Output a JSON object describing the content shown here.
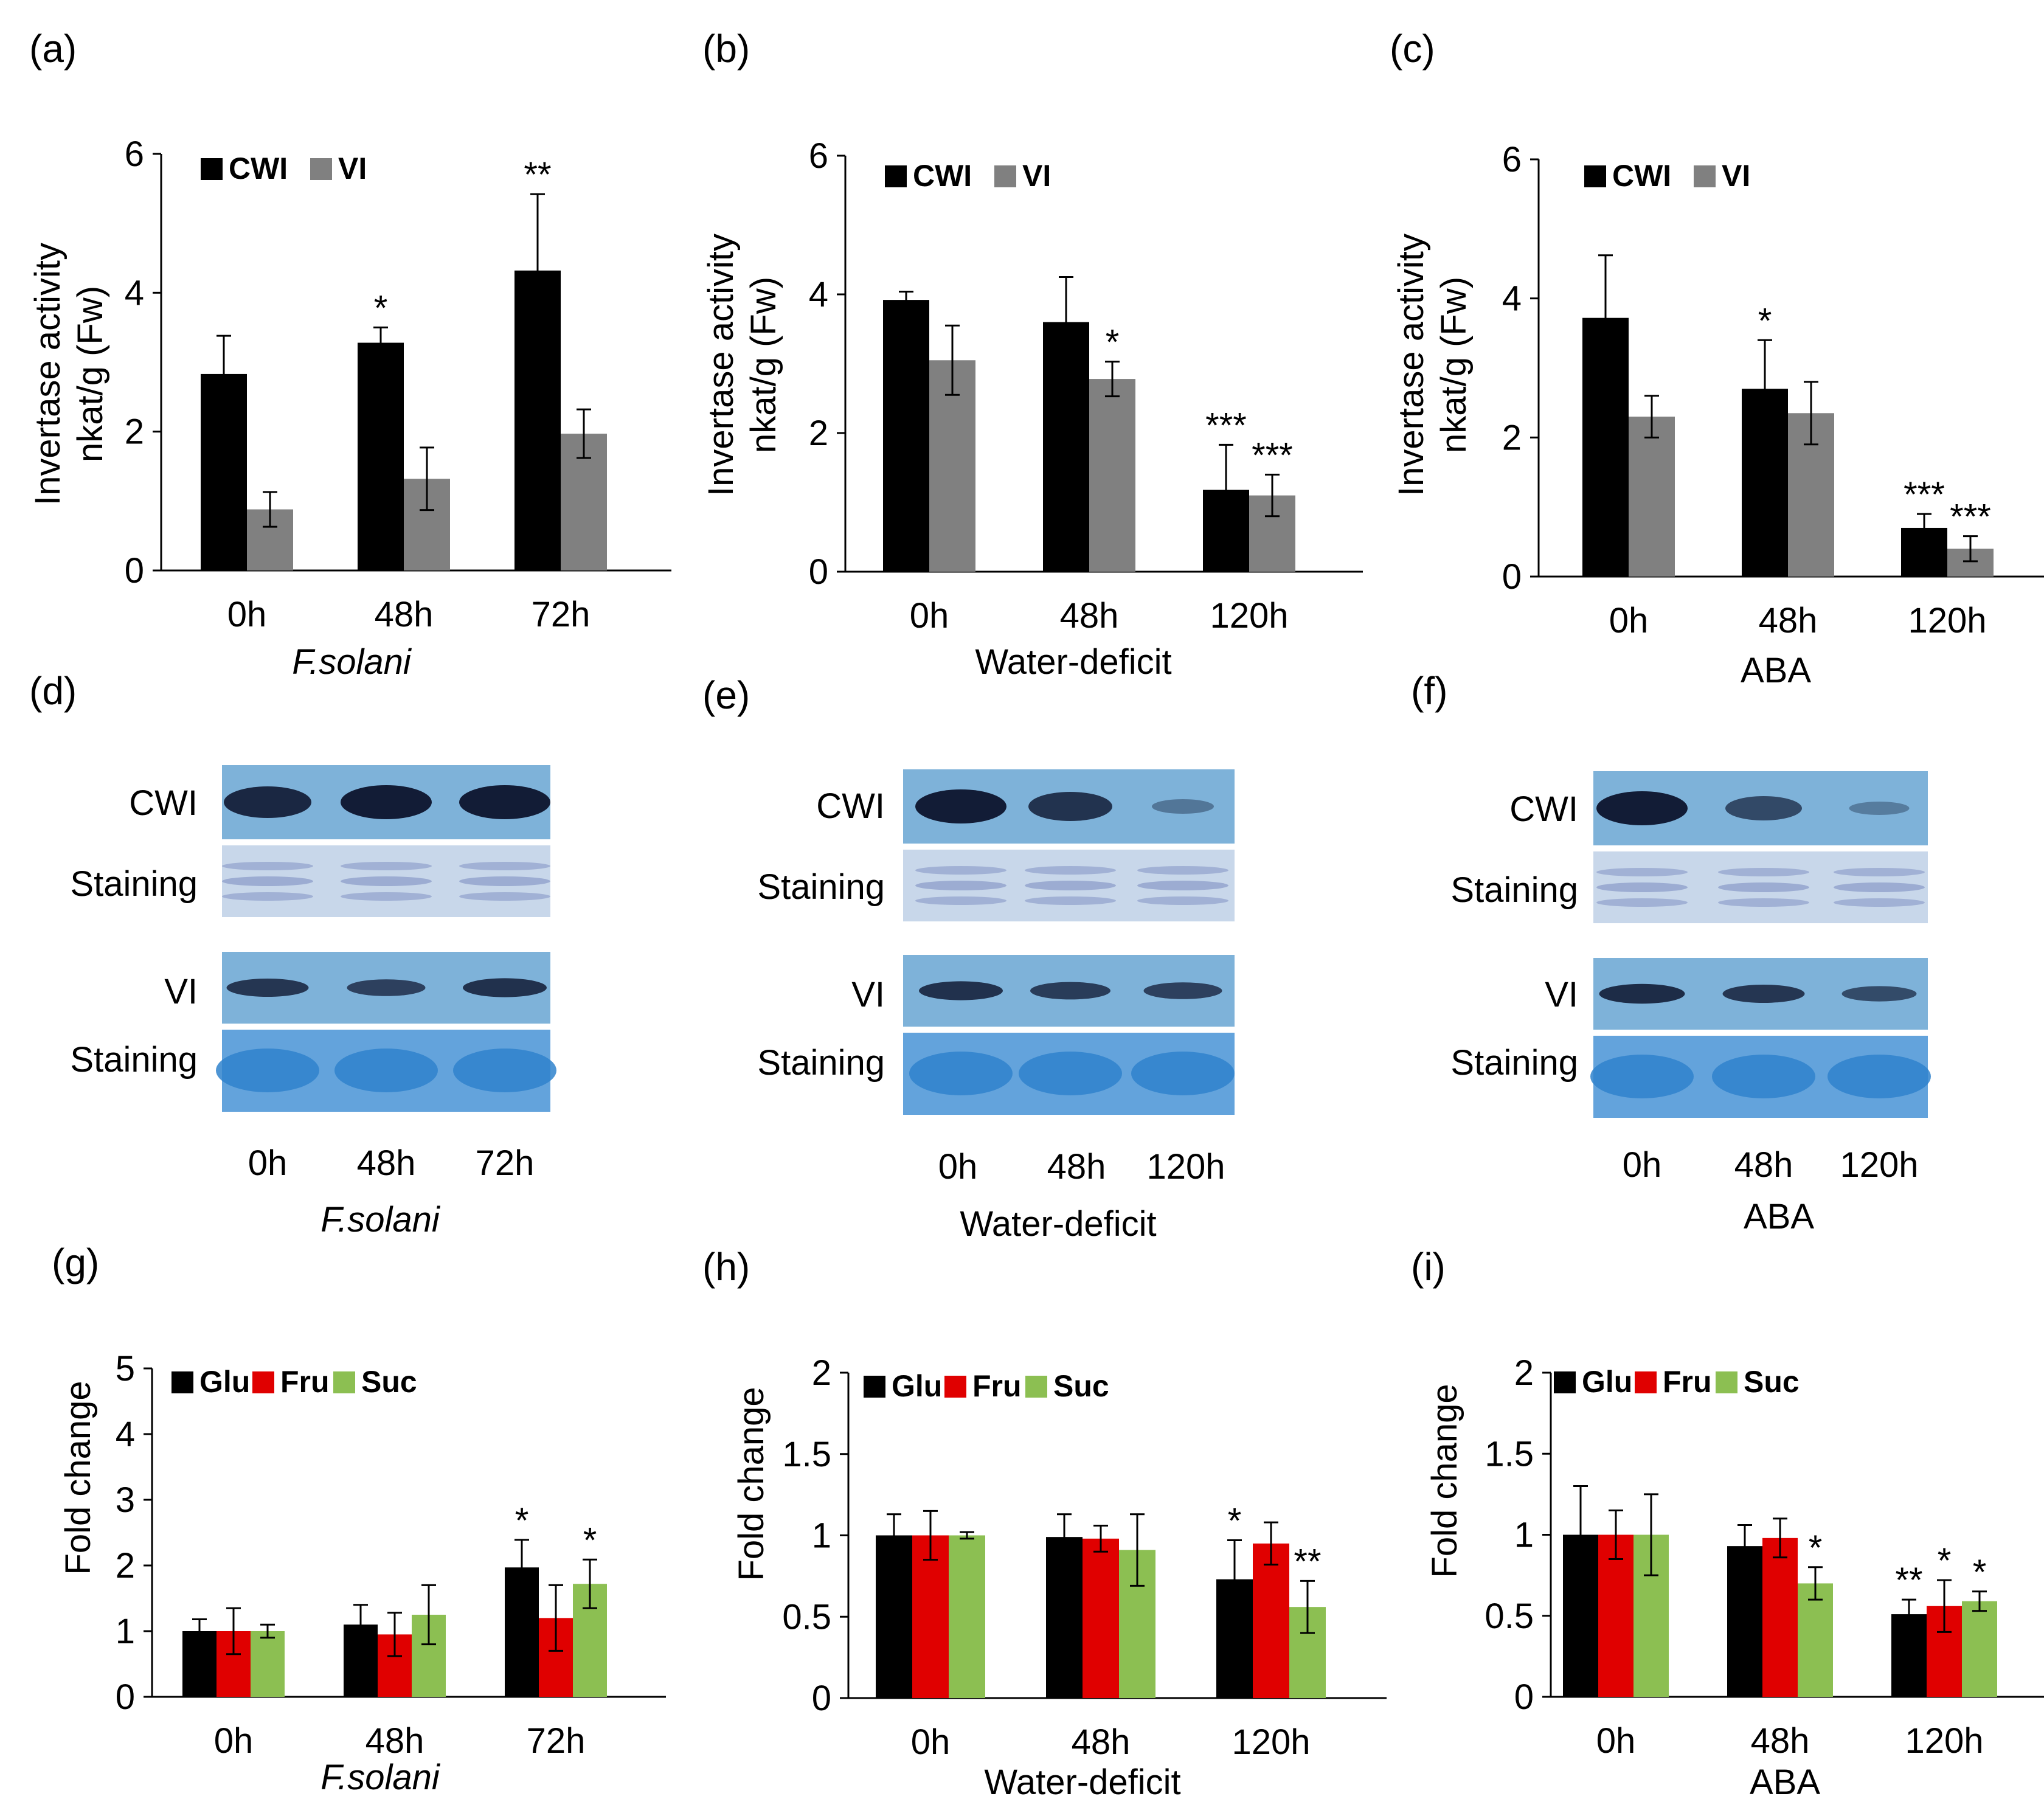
{
  "colors": {
    "cwi": "#000000",
    "vi": "#808080",
    "glu": "#000000",
    "fru": "#e00000",
    "suc": "#8cbf52",
    "blot_bg": "#7eb2d9",
    "stain_bg": "#c8d7ea",
    "stain_strong_bg": "#63a3dc",
    "band": "#121c36",
    "stain_band": "#97a7cf",
    "stain_strong_band": "#2f82cc"
  },
  "panels": {
    "a": {
      "label": "(a)",
      "xlabel": "F.solani",
      "ylabel_line1": "Invertase activity",
      "ylabel_line2": "nkat/g (Fw)",
      "legend": [
        "CWI",
        "VI"
      ]
    },
    "b": {
      "label": "(b)",
      "xlabel": "Water-deficit",
      "ylabel_line1": "Invertase activity",
      "ylabel_line2": "nkat/g (Fw)",
      "legend": [
        "CWI",
        "VI"
      ]
    },
    "c": {
      "label": "(c)",
      "xlabel": "ABA",
      "ylabel_line1": "Invertase activity",
      "ylabel_line2": "nkat/g (Fw)",
      "legend": [
        "CWI",
        "VI"
      ]
    },
    "d": {
      "label": "(d)",
      "xlabel": "F.solani",
      "row_labels": [
        "CWI",
        "Staining",
        "VI",
        "Staining"
      ],
      "lanes": [
        "0h",
        "48h",
        "72h"
      ]
    },
    "e": {
      "label": "(e)",
      "xlabel": "Water-deficit",
      "row_labels": [
        "CWI",
        "Staining",
        "VI",
        "Staining"
      ],
      "lanes": [
        "0h",
        "48h",
        "120h"
      ]
    },
    "f": {
      "label": "(f)",
      "xlabel": "ABA",
      "row_labels": [
        "CWI",
        "Staining",
        "VI",
        "Staining"
      ],
      "lanes": [
        "0h",
        "48h",
        "120h"
      ]
    },
    "g": {
      "label": "(g)",
      "xlabel": "F.solani",
      "ylabel": "Fold change",
      "legend": [
        "Glu",
        "Fru",
        "Suc"
      ]
    },
    "h": {
      "label": "(h)",
      "xlabel": "Water-deficit",
      "ylabel": "Fold change",
      "legend": [
        "Glu",
        "Fru",
        "Suc"
      ]
    },
    "i": {
      "label": "(i)",
      "xlabel": "ABA",
      "ylabel": "Fold change",
      "legend": [
        "Glu",
        "Fru",
        "Suc"
      ]
    }
  },
  "blots": {
    "d": {
      "cwi_intensity": [
        0.9,
        1.0,
        1.0
      ],
      "vi_intensity": [
        0.75,
        0.65,
        0.8
      ]
    },
    "e": {
      "cwi_intensity": [
        1.0,
        0.8,
        0.2
      ],
      "vi_intensity": [
        0.8,
        0.7,
        0.65
      ]
    },
    "f": {
      "cwi_intensity": [
        1.0,
        0.6,
        0.15
      ],
      "vi_intensity": [
        0.85,
        0.75,
        0.55
      ]
    }
  },
  "chart_data": [
    {
      "panel": "a",
      "type": "bar",
      "categories": [
        "0h",
        "48h",
        "72h"
      ],
      "ylim": [
        0,
        6
      ],
      "yticks": [
        0,
        2,
        4,
        6
      ],
      "series": [
        {
          "name": "CWI",
          "values": [
            2.83,
            3.28,
            4.32
          ],
          "errors": [
            0.55,
            0.22,
            1.1
          ],
          "sig": [
            "",
            "*",
            "**"
          ]
        },
        {
          "name": "VI",
          "values": [
            0.88,
            1.32,
            1.97
          ],
          "errors": [
            0.25,
            0.45,
            0.35
          ],
          "sig": [
            "",
            "",
            ""
          ]
        }
      ]
    },
    {
      "panel": "b",
      "type": "bar",
      "categories": [
        "0h",
        "48h",
        "120h"
      ],
      "ylim": [
        0,
        6
      ],
      "yticks": [
        0,
        2,
        4,
        6
      ],
      "series": [
        {
          "name": "CWI",
          "values": [
            3.92,
            3.6,
            1.18
          ],
          "errors": [
            0.12,
            0.65,
            0.65
          ],
          "sig": [
            "",
            "",
            "***"
          ]
        },
        {
          "name": "VI",
          "values": [
            3.05,
            2.78,
            1.1
          ],
          "errors": [
            0.5,
            0.25,
            0.3
          ],
          "sig": [
            "",
            "*",
            "***"
          ]
        }
      ]
    },
    {
      "panel": "c",
      "type": "bar",
      "categories": [
        "0h",
        "48h",
        "120h"
      ],
      "ylim": [
        0,
        6
      ],
      "yticks": [
        0,
        2,
        4,
        6
      ],
      "series": [
        {
          "name": "CWI",
          "values": [
            3.72,
            2.7,
            0.7
          ],
          "errors": [
            0.9,
            0.7,
            0.2
          ],
          "sig": [
            "",
            "*",
            "***"
          ]
        },
        {
          "name": "VI",
          "values": [
            2.3,
            2.35,
            0.4
          ],
          "errors": [
            0.3,
            0.45,
            0.18
          ],
          "sig": [
            "",
            "",
            "***"
          ]
        }
      ]
    },
    {
      "panel": "g",
      "type": "bar",
      "categories": [
        "0h",
        "48h",
        "72h"
      ],
      "ylim": [
        0,
        5
      ],
      "yticks": [
        0,
        1,
        2,
        3,
        4,
        5
      ],
      "series": [
        {
          "name": "Glu",
          "values": [
            1.0,
            1.1,
            1.97
          ],
          "errors": [
            0.18,
            0.3,
            0.42
          ],
          "sig": [
            "",
            "",
            "*"
          ]
        },
        {
          "name": "Fru",
          "values": [
            1.0,
            0.95,
            1.2
          ],
          "errors": [
            0.35,
            0.33,
            0.5
          ],
          "sig": [
            "",
            "",
            ""
          ]
        },
        {
          "name": "Suc",
          "values": [
            1.0,
            1.25,
            1.72
          ],
          "errors": [
            0.1,
            0.45,
            0.37
          ],
          "sig": [
            "",
            "",
            "*"
          ]
        }
      ]
    },
    {
      "panel": "h",
      "type": "bar",
      "categories": [
        "0h",
        "48h",
        "120h"
      ],
      "ylim": [
        0,
        2
      ],
      "yticks": [
        0,
        0.5,
        1,
        1.5,
        2
      ],
      "series": [
        {
          "name": "Glu",
          "values": [
            1.0,
            0.99,
            0.73
          ],
          "errors": [
            0.13,
            0.14,
            0.24
          ],
          "sig": [
            "",
            "",
            "*"
          ]
        },
        {
          "name": "Fru",
          "values": [
            1.0,
            0.98,
            0.95
          ],
          "errors": [
            0.15,
            0.08,
            0.13
          ],
          "sig": [
            "",
            "",
            ""
          ]
        },
        {
          "name": "Suc",
          "values": [
            1.0,
            0.91,
            0.56
          ],
          "errors": [
            0.02,
            0.22,
            0.16
          ],
          "sig": [
            "",
            "",
            "**"
          ]
        }
      ]
    },
    {
      "panel": "i",
      "type": "bar",
      "categories": [
        "0h",
        "48h",
        "120h"
      ],
      "ylim": [
        0,
        2
      ],
      "yticks": [
        0,
        0.5,
        1,
        1.5,
        2
      ],
      "series": [
        {
          "name": "Glu",
          "values": [
            1.0,
            0.93,
            0.51
          ],
          "errors": [
            0.3,
            0.13,
            0.09
          ],
          "sig": [
            "",
            "",
            "**"
          ]
        },
        {
          "name": "Fru",
          "values": [
            1.0,
            0.98,
            0.56
          ],
          "errors": [
            0.15,
            0.12,
            0.16
          ],
          "sig": [
            "",
            "",
            "*"
          ]
        },
        {
          "name": "Suc",
          "values": [
            1.0,
            0.7,
            0.59
          ],
          "errors": [
            0.25,
            0.1,
            0.06
          ],
          "sig": [
            "",
            "*",
            "*"
          ]
        }
      ]
    }
  ]
}
